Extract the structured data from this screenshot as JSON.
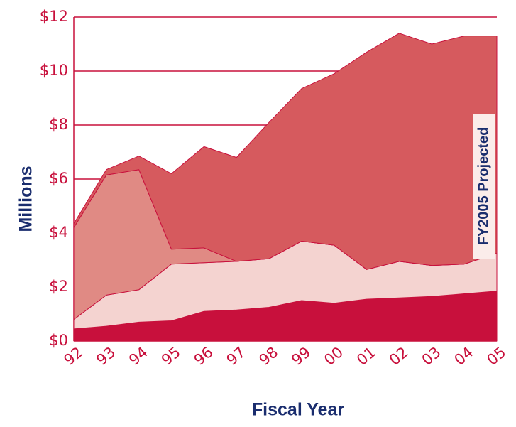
{
  "chart_data": {
    "type": "stacked_area",
    "x_label": "Fiscal Year",
    "y_label": "Millions",
    "annotation": "FY2005 Projected",
    "categories": [
      "92",
      "93",
      "94",
      "95",
      "96",
      "97",
      "98",
      "99",
      "00",
      "01",
      "02",
      "03",
      "04",
      "05"
    ],
    "series": [
      {
        "color": "#c8103c",
        "values": [
          0.45,
          0.55,
          0.7,
          0.75,
          1.1,
          1.15,
          1.25,
          1.5,
          1.4,
          1.55,
          1.6,
          1.65,
          1.75,
          1.85
        ]
      },
      {
        "color": "#f4d3d0",
        "values": [
          0.35,
          1.15,
          1.2,
          2.1,
          1.8,
          1.8,
          1.8,
          2.2,
          2.15,
          1.1,
          1.35,
          1.15,
          1.1,
          1.4
        ]
      },
      {
        "color": "#e08a84",
        "values": [
          3.4,
          4.45,
          4.45,
          0.55,
          0.55,
          0,
          0,
          0,
          0,
          0,
          0,
          0,
          0,
          0
        ]
      },
      {
        "color": "#d65a5e",
        "values": [
          0.15,
          0.2,
          0.5,
          2.8,
          3.75,
          3.85,
          5.05,
          5.65,
          6.35,
          8.05,
          8.45,
          8.2,
          8.45,
          8.05
        ]
      }
    ],
    "ylim": [
      0,
      12
    ],
    "yticks": [
      {
        "value": 0,
        "label": "$0"
      },
      {
        "value": 2,
        "label": "$2"
      },
      {
        "value": 4,
        "label": "$4"
      },
      {
        "value": 6,
        "label": "$6"
      },
      {
        "value": 8,
        "label": "$8"
      },
      {
        "value": 10,
        "label": "$10"
      },
      {
        "value": 12,
        "label": "$12"
      }
    ],
    "grid": true,
    "grid_color": "#c8103c"
  }
}
